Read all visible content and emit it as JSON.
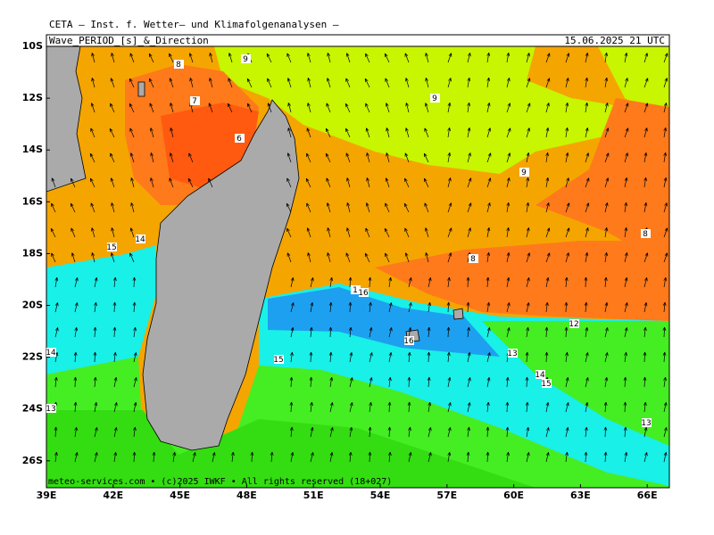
{
  "header": {
    "title": "CETA – Inst. f. Wetter– und Klimafolgenanalysen –",
    "variable": "Wave_PERIOD_[s]_&_Direction",
    "time": "15.06.2025 21 UTC"
  },
  "map": {
    "lat_labels": [
      "10S",
      "12S",
      "14S",
      "16S",
      "18S",
      "20S",
      "22S",
      "24S",
      "26S"
    ],
    "lon_labels": [
      "39E",
      "42E",
      "45E",
      "48E",
      "51E",
      "54E",
      "57E",
      "60E",
      "63E",
      "66E"
    ],
    "contour_labels": [
      "8",
      "9",
      "7",
      "6",
      "9",
      "9",
      "8",
      "8",
      "15",
      "14",
      "1",
      "16",
      "16",
      "12",
      "13",
      "15",
      "14",
      "15",
      "14",
      "13",
      "13"
    ],
    "footer": "meteo-services.com • (c)2025 IWKF • All rights reserved (18+027)"
  }
}
